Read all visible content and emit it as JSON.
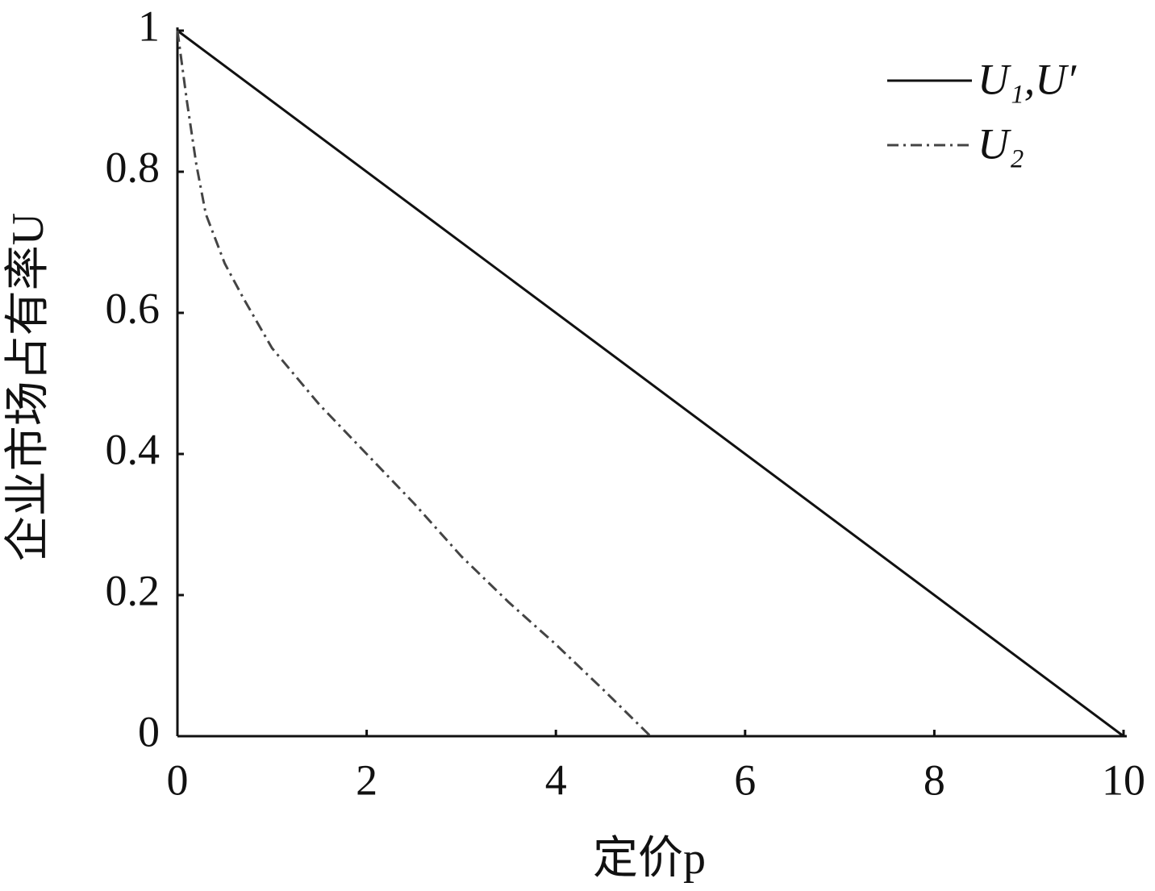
{
  "chart_data": {
    "type": "line",
    "xlabel": "定价p",
    "ylabel": "企业市场占有率U",
    "series": [
      {
        "name": "U₁,U′",
        "color": "#111111",
        "linestyle": "solid",
        "x": [
          0,
          10
        ],
        "values": [
          1,
          0
        ]
      },
      {
        "name": "U₂",
        "color": "#444444",
        "linestyle": "dashdot",
        "x": [
          0,
          0.1,
          0.2,
          0.3,
          0.5,
          0.7,
          1,
          1.5,
          2,
          2.5,
          3,
          3.5,
          4,
          4.5,
          5
        ],
        "values": [
          1,
          0.9,
          0.81,
          0.74,
          0.67,
          0.62,
          0.55,
          0.47,
          0.4,
          0.33,
          0.255,
          0.19,
          0.13,
          0.066,
          0
        ]
      }
    ],
    "xlim": [
      0,
      10
    ],
    "xticks": [
      0,
      2,
      4,
      6,
      8,
      10
    ],
    "ylim": [
      0,
      1
    ],
    "yticks": [
      0,
      0.2,
      0.4,
      0.6,
      0.8,
      1
    ],
    "grid": false,
    "legend": "upper right"
  }
}
